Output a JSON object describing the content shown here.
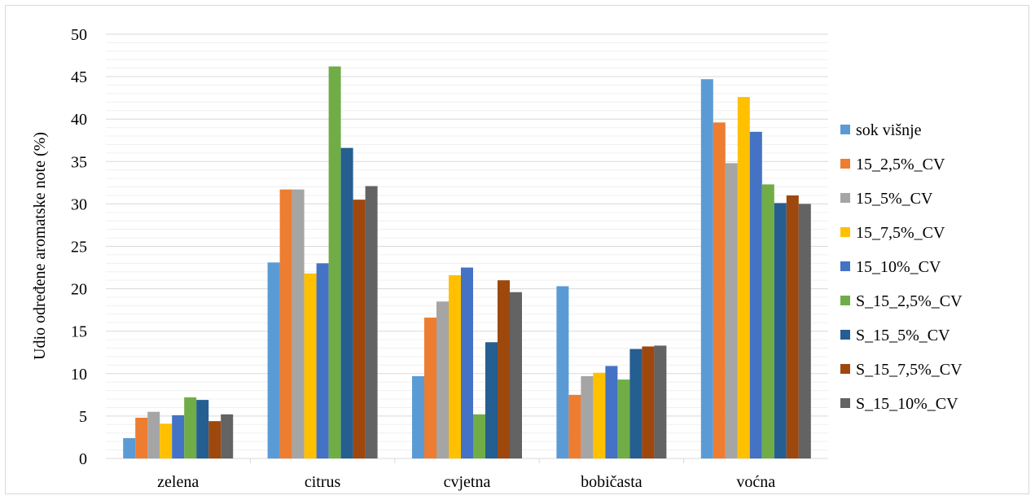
{
  "chart_data": {
    "type": "bar",
    "title": "",
    "xlabel": "",
    "ylabel": "Udio određene aromatske note (%)",
    "ylim": [
      0,
      50
    ],
    "yticks": [
      0,
      5,
      10,
      15,
      20,
      25,
      30,
      35,
      40,
      45,
      50
    ],
    "grid": true,
    "legend_position": "right",
    "categories": [
      "zelena",
      "citrus",
      "cvjetna",
      "bobičasta",
      "voćna"
    ],
    "series": [
      {
        "name": "sok višnje",
        "color": "#5B9BD5",
        "values": [
          2.4,
          23.1,
          9.7,
          20.3,
          44.7
        ]
      },
      {
        "name": "15_2,5%_CV",
        "color": "#ED7D31",
        "values": [
          4.8,
          31.7,
          16.6,
          7.5,
          39.6
        ]
      },
      {
        "name": "15_5%_CV",
        "color": "#A5A5A5",
        "values": [
          5.5,
          31.7,
          18.5,
          9.7,
          34.8
        ]
      },
      {
        "name": "15_7,5%_CV",
        "color": "#FFC000",
        "values": [
          4.1,
          21.8,
          21.6,
          10.1,
          42.6
        ]
      },
      {
        "name": "15_10%_CV",
        "color": "#4472C4",
        "values": [
          5.1,
          23.0,
          22.5,
          10.9,
          38.5
        ]
      },
      {
        "name": "S_15_2,5%_CV",
        "color": "#70AD47",
        "values": [
          7.2,
          46.2,
          5.2,
          9.3,
          32.3
        ]
      },
      {
        "name": "S_15_5%_CV",
        "color": "#255E91",
        "values": [
          6.9,
          36.6,
          13.7,
          12.9,
          30.1
        ]
      },
      {
        "name": "S_15_7,5%_CV",
        "color": "#9E480E",
        "values": [
          4.4,
          30.5,
          21.0,
          13.2,
          31.0
        ]
      },
      {
        "name": "S_15_10%_CV",
        "color": "#636363",
        "values": [
          5.2,
          32.1,
          19.6,
          13.3,
          30.0
        ]
      }
    ]
  }
}
